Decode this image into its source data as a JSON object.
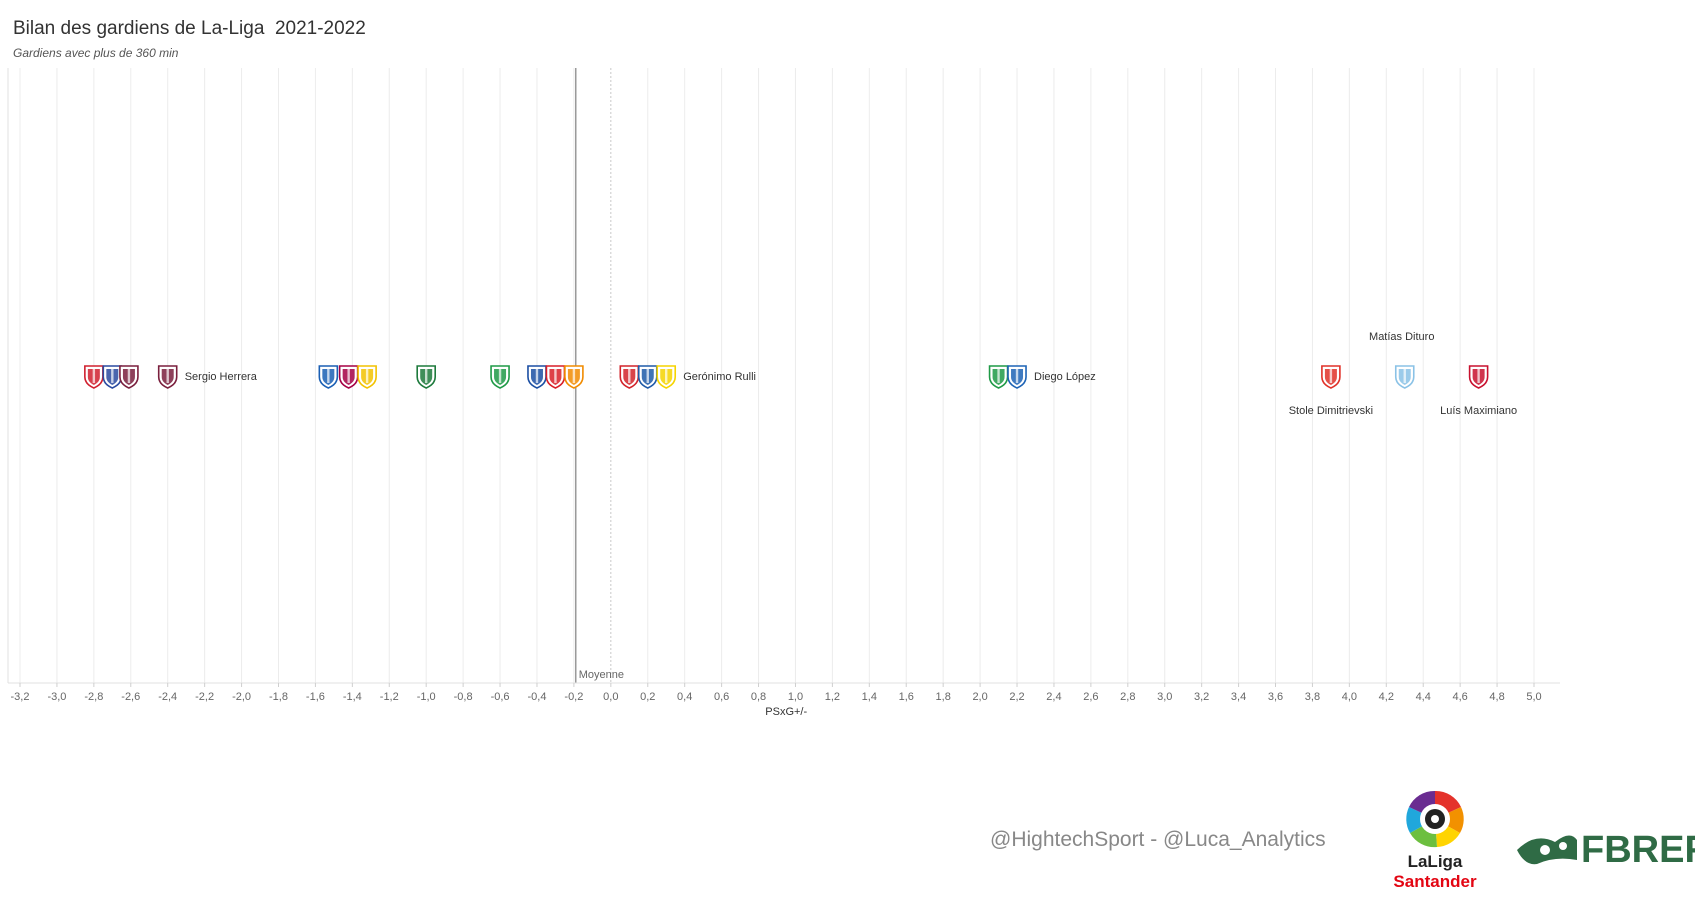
{
  "title": "Bilan des gardiens de La-Liga  2021-2022",
  "subtitle": "Gardiens avec plus de 360 min",
  "credit": "@HightechSport - @Luca_Analytics",
  "logos": {
    "laliga": {
      "line1": "LaLiga",
      "line2": "Santander"
    },
    "fbref": {
      "text": "FBREF"
    }
  },
  "colors": {
    "grid": "#ececec",
    "mean_line": "#9a9a9a",
    "zero_line": "#c8c8c8",
    "text": "#333333",
    "tick_text": "#666666"
  },
  "chart_data": {
    "type": "scatter",
    "title": "Bilan des gardiens de La-Liga  2021-2022",
    "subtitle": "Gardiens avec plus de 360 min",
    "xlabel": "PSxG+/-",
    "ylabel": "",
    "xlim": [
      -3.3,
      5.1
    ],
    "grid": true,
    "x_ticks": [
      "-3,2",
      "-3,0",
      "-2,8",
      "-2,6",
      "-2,4",
      "-2,2",
      "-2,0",
      "-1,8",
      "-1,6",
      "-1,4",
      "-1,2",
      "-1,0",
      "-0,8",
      "-0,6",
      "-0,4",
      "-0,2",
      "0,0",
      "0,2",
      "0,4",
      "0,6",
      "0,8",
      "1,0",
      "1,2",
      "1,4",
      "1,6",
      "1,8",
      "2,0",
      "2,2",
      "2,4",
      "2,6",
      "2,8",
      "3,0",
      "3,2",
      "3,4",
      "3,6",
      "3,8",
      "4,0",
      "4,2",
      "4,4",
      "4,6",
      "4,8",
      "5,0"
    ],
    "reference_line": {
      "label": "Moyenne",
      "x": -0.19
    },
    "points": [
      {
        "x": -2.8,
        "club_icon": "mallorca-crest",
        "color": "#d0202f"
      },
      {
        "x": -2.7,
        "club_icon": "atletico-madrid-crest",
        "color": "#2a4aa0"
      },
      {
        "x": -2.61,
        "club_icon": "levante-crest",
        "color": "#7a1f3d"
      },
      {
        "x": -2.4,
        "club_icon": "levante-crest",
        "color": "#7a1f3d",
        "label": "Sergio Herrera"
      },
      {
        "x": -1.53,
        "club_icon": "getafe-crest",
        "color": "#1a5fb4"
      },
      {
        "x": -1.42,
        "club_icon": "barcelona-crest",
        "color": "#a50044"
      },
      {
        "x": -1.32,
        "club_icon": "cadiz-crest",
        "color": "#f2c200"
      },
      {
        "x": -1.0,
        "club_icon": "elche-crest",
        "color": "#1d7a3c"
      },
      {
        "x": -0.6,
        "club_icon": "betis-crest",
        "color": "#1f9a46"
      },
      {
        "x": -0.4,
        "club_icon": "alaves-crest",
        "color": "#1b4fa3"
      },
      {
        "x": -0.3,
        "club_icon": "sevilla-crest",
        "color": "#d81e28"
      },
      {
        "x": -0.2,
        "club_icon": "valencia-crest",
        "color": "#f18b00"
      },
      {
        "x": 0.1,
        "club_icon": "athletic-club-crest",
        "color": "#d2232a"
      },
      {
        "x": 0.2,
        "club_icon": "real-sociedad-crest",
        "color": "#1f5aa8"
      },
      {
        "x": 0.3,
        "club_icon": "villarreal-crest",
        "color": "#f5d400",
        "label": "Gerónimo Rulli"
      },
      {
        "x": 2.1,
        "club_icon": "betis-crest",
        "color": "#1f9a46"
      },
      {
        "x": 2.2,
        "club_icon": "espanyol-crest",
        "color": "#1d63b5",
        "label": "Diego López"
      },
      {
        "x": 3.9,
        "club_icon": "rayo-vallecano-crest",
        "color": "#e03128",
        "label": "Stole Dimitrievski",
        "label_pos": "below"
      },
      {
        "x": 4.3,
        "club_icon": "celta-vigo-crest",
        "color": "#8ac2e6",
        "label": "Matías Dituro",
        "label_pos": "above"
      },
      {
        "x": 4.7,
        "club_icon": "granada-crest",
        "color": "#c8102e",
        "label": "Luís Maximiano",
        "label_pos": "below"
      }
    ]
  }
}
